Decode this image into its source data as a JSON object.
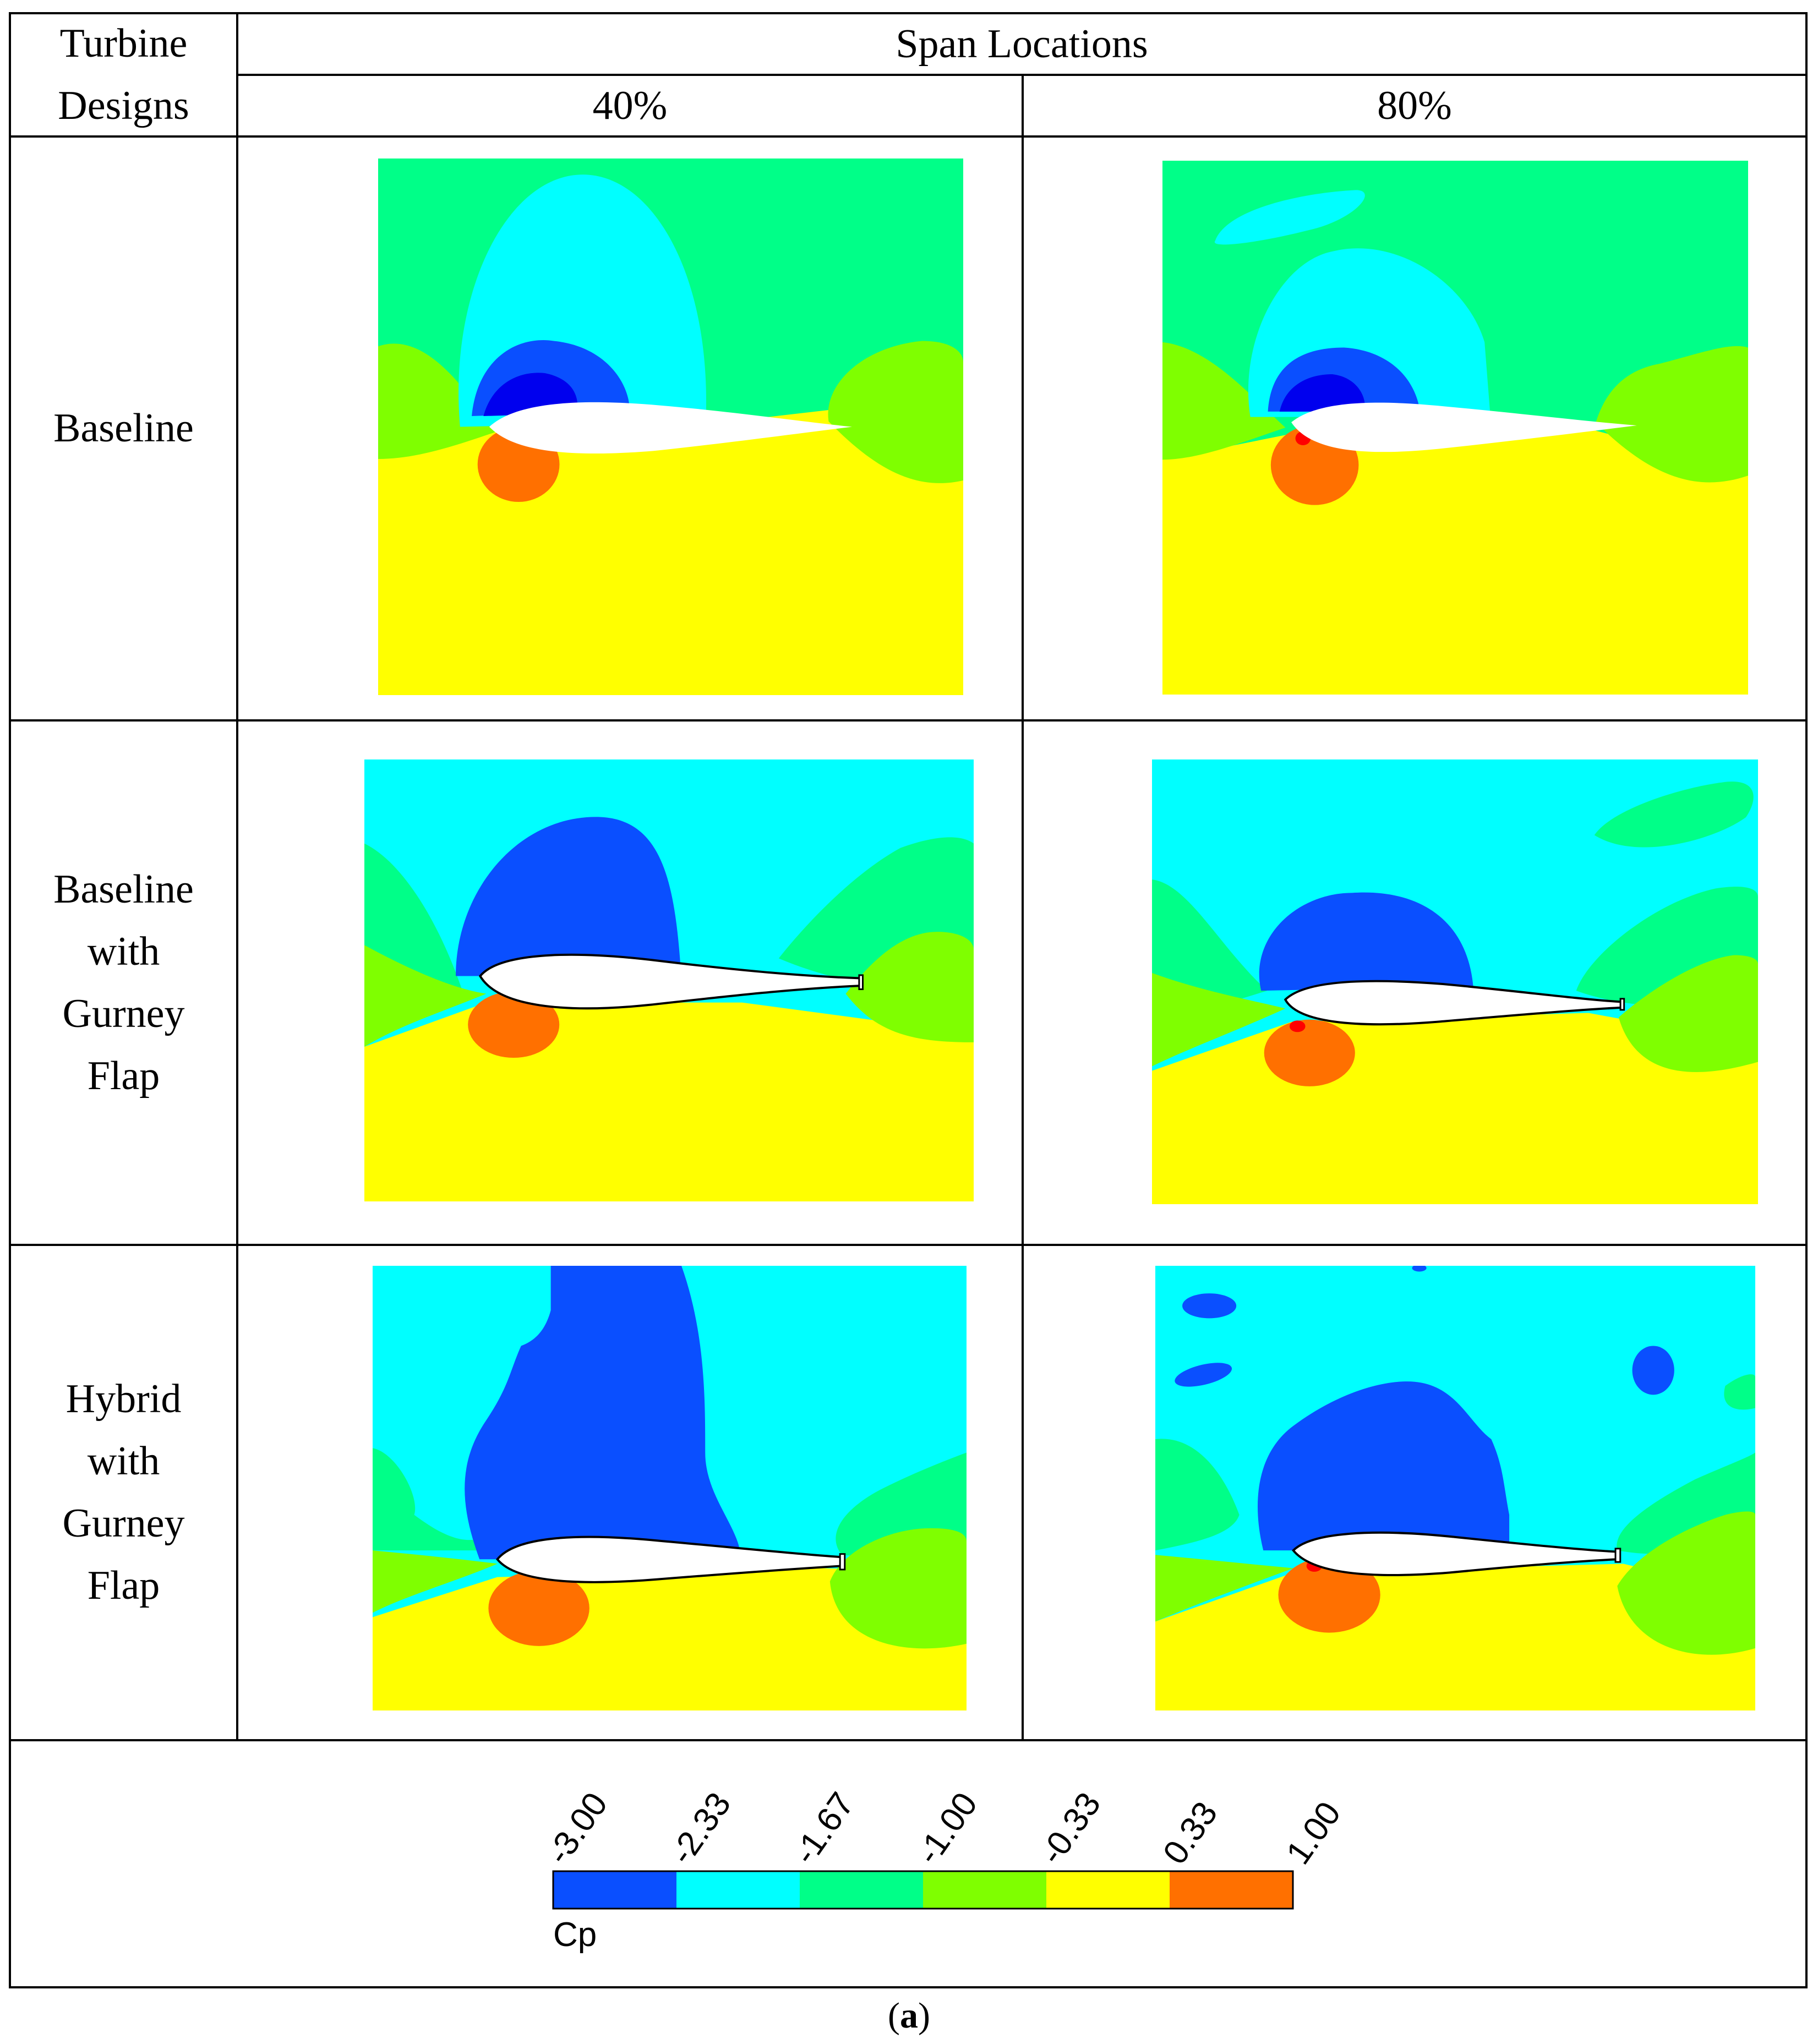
{
  "table": {
    "header_designs": "Turbine\nDesigns",
    "header_span": "Span Locations",
    "span_columns": [
      "40%",
      "80%"
    ],
    "rows": [
      {
        "label": "Baseline"
      },
      {
        "label": "Baseline\nwith\nGurney\nFlap"
      },
      {
        "label": "Hybrid\nwith\nGurney\nFlap"
      }
    ]
  },
  "panels": [
    {
      "design": "Baseline",
      "span": "40%",
      "description": "Cp contour around airfoil section"
    },
    {
      "design": "Baseline",
      "span": "80%",
      "description": "Cp contour around airfoil section"
    },
    {
      "design": "Baseline with Gurney Flap",
      "span": "40%",
      "description": "Cp contour around airfoil section with Gurney flap"
    },
    {
      "design": "Baseline with Gurney Flap",
      "span": "80%",
      "description": "Cp contour around airfoil section with Gurney flap"
    },
    {
      "design": "Hybrid with Gurney Flap",
      "span": "40%",
      "description": "Cp contour around airfoil section with Gurney flap"
    },
    {
      "design": "Hybrid with Gurney Flap",
      "span": "80%",
      "description": "Cp contour around airfoil section with Gurney flap"
    }
  ],
  "legend": {
    "variable": "Cp",
    "ticks": [
      "-3.00",
      "-2.33",
      "-1.67",
      "-1.00",
      "-0.33",
      "0.33",
      "1.00"
    ],
    "colors": [
      "#0a4fff",
      "#00ffff",
      "#00ff88",
      "#7fff00",
      "#ffff00",
      "#ff7000"
    ]
  },
  "caption": {
    "open": "(",
    "letter": "a",
    "close": ")"
  },
  "palette": {
    "dark_blue": "#0000ee",
    "blue": "#0a4fff",
    "cyan": "#00ffff",
    "green": "#00ff88",
    "light_green": "#7fff00",
    "yellow": "#ffff00",
    "orange": "#ff7000",
    "red": "#ff0000"
  }
}
